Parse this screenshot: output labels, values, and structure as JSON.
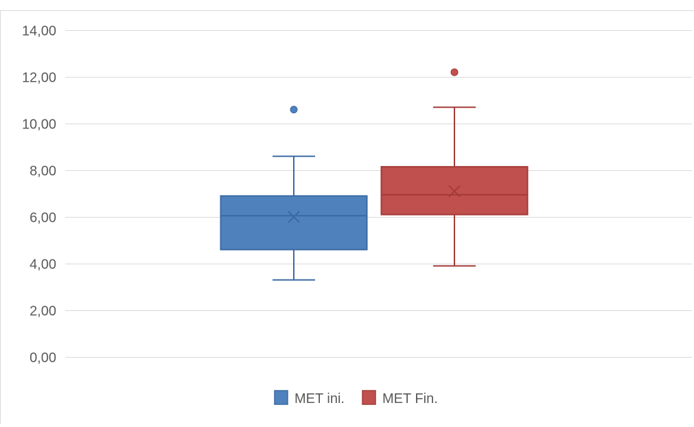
{
  "chart_data": {
    "type": "box",
    "title": "",
    "xlabel": "",
    "ylabel": "",
    "ylim": [
      0,
      14
    ],
    "yticks": [
      0,
      2,
      4,
      6,
      8,
      10,
      12,
      14
    ],
    "ytick_labels": [
      "0,00",
      "2,00",
      "4,00",
      "6,00",
      "8,00",
      "10,00",
      "12,00",
      "14,00"
    ],
    "grid": true,
    "legend_position": "bottom",
    "series": [
      {
        "name": "MET ini.",
        "color": "#4f81bd",
        "edge_color": "#3a6aa3",
        "whisker_low": 3.3,
        "q1": 4.6,
        "median": 6.05,
        "mean": 6.0,
        "q3": 6.9,
        "whisker_high": 8.6,
        "outliers": [
          10.6
        ]
      },
      {
        "name": "MET Fin.",
        "color": "#c0504d",
        "edge_color": "#a33a37",
        "whisker_low": 3.9,
        "q1": 6.1,
        "median": 6.95,
        "mean": 7.1,
        "q3": 8.15,
        "whisker_high": 10.7,
        "outliers": [
          12.2
        ]
      }
    ]
  }
}
